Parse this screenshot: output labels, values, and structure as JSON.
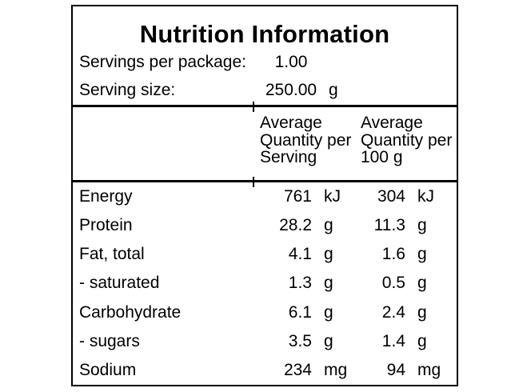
{
  "page": {
    "background": "#ffffff",
    "text_color": "#000000",
    "border_color": "#000000"
  },
  "label": {
    "title": "Nutrition Information",
    "servings_row": {
      "label": "Servings per package:",
      "value": "1.00",
      "unit": ""
    },
    "serving_size_row": {
      "label": "Serving size:",
      "value": "250.00",
      "unit": "g"
    },
    "columns": {
      "per_serving": "Average Quantity per Serving",
      "per_100g": "Average Quantity per 100 g"
    },
    "rows": [
      {
        "name": "Energy",
        "qty_serving": "761",
        "unit_serving": "kJ",
        "qty_100g": "304",
        "unit_100g": "kJ"
      },
      {
        "name": "Protein",
        "qty_serving": "28.2",
        "unit_serving": "g",
        "qty_100g": "11.3",
        "unit_100g": "g"
      },
      {
        "name": "Fat, total",
        "qty_serving": "4.1",
        "unit_serving": "g",
        "qty_100g": "1.6",
        "unit_100g": "g"
      },
      {
        "name": "- saturated",
        "qty_serving": "1.3",
        "unit_serving": "g",
        "qty_100g": "0.5",
        "unit_100g": "g"
      },
      {
        "name": "Carbohydrate",
        "qty_serving": "6.1",
        "unit_serving": "g",
        "qty_100g": "2.4",
        "unit_100g": "g"
      },
      {
        "name": "- sugars",
        "qty_serving": "3.5",
        "unit_serving": "g",
        "qty_100g": "1.4",
        "unit_100g": "g"
      },
      {
        "name": "Sodium",
        "qty_serving": "234",
        "unit_serving": "mg",
        "qty_100g": "94",
        "unit_100g": "mg"
      }
    ]
  }
}
